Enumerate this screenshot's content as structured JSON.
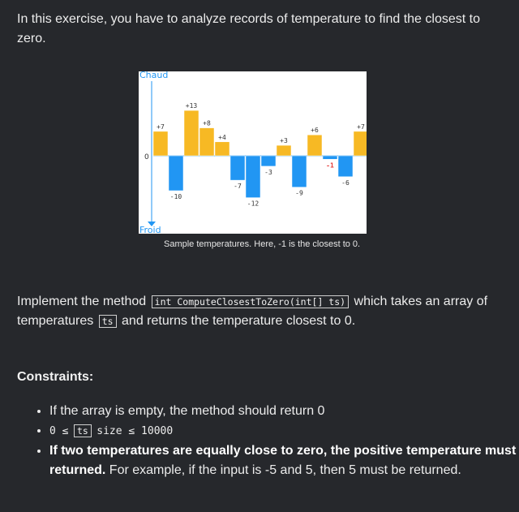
{
  "intro": "In this exercise, you have to analyze records of temperature to find the closest to zero.",
  "chart_data": {
    "type": "bar",
    "values": [
      7,
      -10,
      13,
      8,
      4,
      -7,
      -12,
      -3,
      3,
      -9,
      6,
      -1,
      -6,
      7
    ],
    "labels": [
      "+7",
      "-10",
      "+13",
      "+8",
      "+4",
      "-7",
      "-12",
      "-3",
      "+3",
      "-9",
      "+6",
      "-1",
      "-6",
      "+7"
    ],
    "axis_top_label": "Chaud",
    "axis_bottom_label": "Froid",
    "zero_label": "0",
    "colors": {
      "positive": "#f7b924",
      "negative": "#2196f3",
      "axis": "#2196f3",
      "highlight_label": "#e53935"
    },
    "highlight_index": 11
  },
  "caption": "Sample temperatures. Here, -1 is the closest to 0.",
  "paragraph": {
    "part1": "Implement the method",
    "code": "int ComputeClosestToZero(int[] ts)",
    "part2": "which takes an array of temperatures",
    "code2": "ts",
    "part3": "and returns the temperature closest to 0."
  },
  "constraints": {
    "title": "Constraints:",
    "item1": "If the array is empty, the method should return 0",
    "item2_a": "0 ≤",
    "item2_code": "ts",
    "item2_b": "size ≤ 10000",
    "item3_bold": "If two temperatures are equally close to zero, the positive temperature must be returned.",
    "item3_rest": " For example, if the input is -5 and 5, then 5 must be returned."
  }
}
